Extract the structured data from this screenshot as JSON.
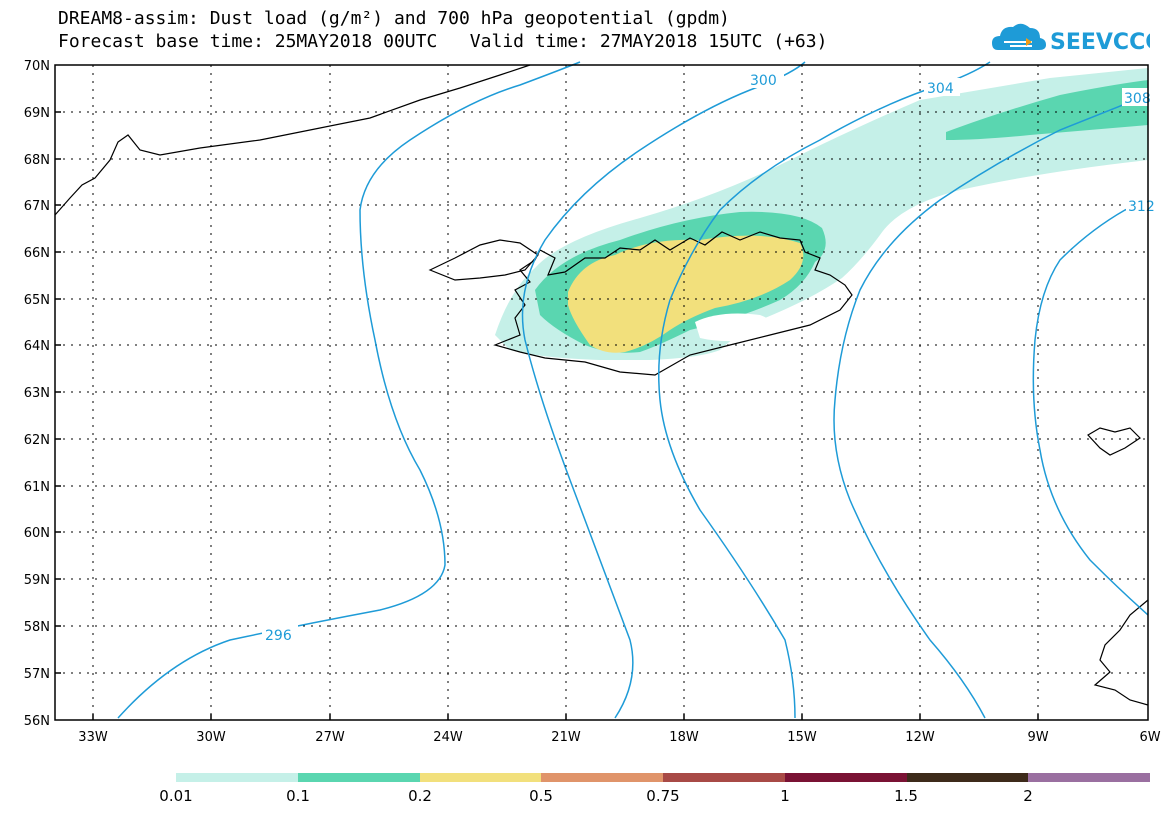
{
  "title": {
    "line1": "DREAM8-assim: Dust load (g/m²) and 700 hPa geopotential (gpdm)",
    "line2": "Forecast base time: 25MAY2018 00UTC   Valid time: 27MAY2018 15UTC (+63)"
  },
  "logo": {
    "text": "SEEVCCC",
    "icon": "cloud-logo-icon",
    "color": "#1e9bd7"
  },
  "lat_labels": [
    "70N",
    "69N",
    "68N",
    "67N",
    "66N",
    "65N",
    "64N",
    "63N",
    "62N",
    "61N",
    "60N",
    "59N",
    "58N",
    "57N",
    "56N"
  ],
  "lon_labels": [
    "33W",
    "30W",
    "27W",
    "24W",
    "21W",
    "18W",
    "15W",
    "12W",
    "9W",
    "6W"
  ],
  "contour_labels": [
    "296",
    "300",
    "304",
    "308",
    "312"
  ],
  "colors": {
    "contour": "#1e9bd7",
    "dust_0_01": "#c5f0e8",
    "dust_0_1": "#5ad6b0",
    "dust_0_2": "#f2e07c"
  },
  "legend": {
    "colors": [
      "#c5f0e8",
      "#5ad6b0",
      "#f2e07c",
      "#e0946a",
      "#a84a46",
      "#7a1234",
      "#3d2a1a",
      "#9a6fa0"
    ],
    "labels": [
      "0.01",
      "0.1",
      "0.2",
      "0.5",
      "0.75",
      "1",
      "1.5",
      "2"
    ]
  }
}
